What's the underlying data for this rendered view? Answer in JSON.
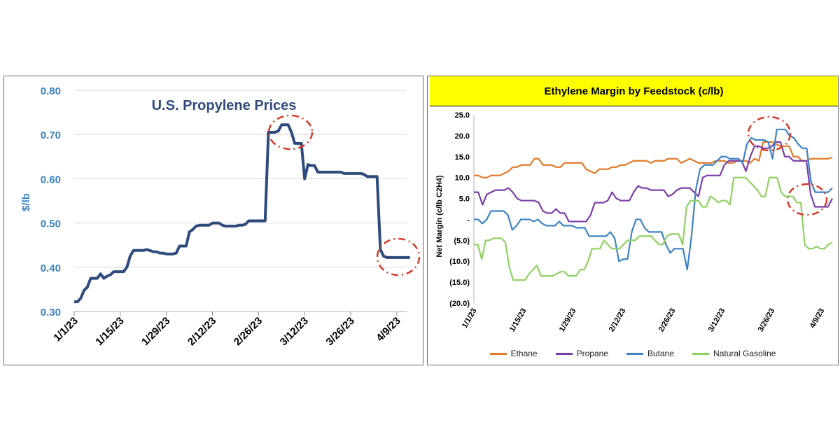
{
  "chart_data": [
    {
      "type": "line",
      "title": "U.S. Propylene Prices",
      "xlabel": "",
      "ylabel": "$/lb",
      "ylim": [
        0.3,
        0.8
      ],
      "yticks": [
        "0.30",
        "0.40",
        "0.50",
        "0.60",
        "0.70",
        "0.80"
      ],
      "xticks": [
        "1/1/23",
        "1/15/23",
        "1/29/23",
        "2/12/23",
        "2/26/23",
        "3/12/23",
        "3/26/23",
        "4/9/23"
      ],
      "grid": true,
      "x_start": "2023-01-01",
      "series": [
        {
          "name": "",
          "color": "#2f4b7c",
          "values": [
            0.322,
            0.322,
            0.33,
            0.348,
            0.355,
            0.375,
            0.375,
            0.375,
            0.385,
            0.375,
            0.38,
            0.383,
            0.39,
            0.39,
            0.39,
            0.39,
            0.4,
            0.425,
            0.438,
            0.438,
            0.438,
            0.438,
            0.44,
            0.438,
            0.435,
            0.435,
            0.432,
            0.432,
            0.43,
            0.43,
            0.43,
            0.432,
            0.448,
            0.448,
            0.448,
            0.48,
            0.485,
            0.493,
            0.495,
            0.495,
            0.495,
            0.495,
            0.5,
            0.5,
            0.5,
            0.495,
            0.493,
            0.493,
            0.493,
            0.493,
            0.495,
            0.495,
            0.497,
            0.505,
            0.505,
            0.505,
            0.505,
            0.505,
            0.505,
            0.705,
            0.705,
            0.705,
            0.708,
            0.722,
            0.722,
            0.722,
            0.705,
            0.68,
            0.68,
            0.68,
            0.6,
            0.632,
            0.63,
            0.63,
            0.615,
            0.615,
            0.615,
            0.615,
            0.615,
            0.615,
            0.615,
            0.615,
            0.612,
            0.612,
            0.612,
            0.612,
            0.612,
            0.612,
            0.61,
            0.605,
            0.605,
            0.605,
            0.605,
            0.44,
            0.425,
            0.422,
            0.422,
            0.422,
            0.422,
            0.422,
            0.422,
            0.422,
            0.422
          ]
        }
      ]
    },
    {
      "type": "line",
      "title": "Ethylene Margin by Feedstock (c/lb)",
      "xlabel": "",
      "ylabel": "Net Margin (c/lb C2H4)",
      "ylim": [
        -20,
        25
      ],
      "yticks": [
        "(20.0)",
        "(15.0)",
        "(10.0)",
        "(5.0)",
        "-",
        "5.0",
        "10.0",
        "15.0",
        "20.0",
        "25.0"
      ],
      "xticks": [
        "1/1/23",
        "1/15/23",
        "1/29/23",
        "2/12/23",
        "2/26/23",
        "3/12/23",
        "3/26/23",
        "4/9/23"
      ],
      "legend": "bottom",
      "x_start": "2023-01-01",
      "series": [
        {
          "name": "Ethane",
          "color": "#e07b2a",
          "values": [
            10.5,
            10.5,
            10,
            10,
            10.5,
            10.5,
            10.5,
            11,
            11.5,
            12.5,
            12.5,
            13,
            13,
            13,
            14.5,
            14.5,
            13,
            13,
            13,
            12.5,
            12.5,
            13.5,
            13.5,
            13.5,
            13.5,
            13.5,
            12,
            11.5,
            11,
            12,
            12,
            12,
            12.5,
            12.5,
            13,
            13,
            13.5,
            14,
            14,
            14,
            14,
            13.5,
            14,
            14,
            14,
            14.5,
            14.5,
            14.5,
            13.5,
            14,
            14.5,
            14,
            13.5,
            13.5,
            13.5,
            13.5,
            14,
            14,
            14,
            13.5,
            13.5,
            14,
            14,
            14,
            13.5,
            14.5,
            14,
            18.5,
            18.5,
            18.5,
            18,
            17.5,
            17.5,
            17.5,
            15,
            15,
            14,
            14,
            14.5,
            14.5,
            14.5,
            14.5,
            14.5,
            14.8
          ]
        },
        {
          "name": "Propane",
          "color": "#7a3ea8",
          "values": [
            6.5,
            6.5,
            3.5,
            6,
            6.5,
            7,
            7,
            7,
            7.5,
            6.5,
            5,
            4.5,
            4.5,
            4.5,
            4.5,
            4,
            2,
            1.5,
            1.5,
            2.5,
            1.5,
            1.5,
            -0.5,
            -0.5,
            -0.5,
            -0.5,
            -0.5,
            1,
            4,
            4,
            4,
            4.5,
            6.5,
            5,
            4.5,
            4.5,
            4.5,
            6.5,
            8,
            7.5,
            7.5,
            7,
            7,
            7,
            7,
            5.5,
            6,
            7,
            7.5,
            7.5,
            7.5,
            6.5,
            5.5,
            10,
            10.5,
            10.5,
            10.5,
            10.5,
            13,
            14,
            14,
            14,
            14,
            11.5,
            15,
            17.5,
            17.5,
            17,
            17,
            17.5,
            18.5,
            18.5,
            15,
            15,
            14,
            14,
            14,
            14,
            6,
            3,
            3,
            3,
            3,
            5
          ]
        },
        {
          "name": "Butane",
          "color": "#3b83c4",
          "values": [
            0,
            0,
            -1,
            0,
            2,
            2,
            2,
            2,
            1,
            -2.5,
            -1.5,
            0,
            0,
            0,
            -0.5,
            0,
            -1,
            -1.5,
            -1.5,
            -1.5,
            -0.5,
            -1.5,
            -1.5,
            -1.5,
            -2,
            -2,
            -2,
            -4,
            -4,
            -4,
            -4,
            -4,
            -3,
            -4.5,
            -10,
            -9.5,
            -9.5,
            -3,
            0,
            0,
            -2,
            -3,
            -3,
            -3,
            -3,
            -6,
            -8,
            -7,
            -7,
            -7,
            -12,
            -4,
            7,
            12,
            13,
            13,
            13,
            14,
            15,
            15,
            14.5,
            14.5,
            14.5,
            13.5,
            18,
            19.5,
            19,
            19,
            19,
            18.5,
            14.5,
            21.5,
            21.5,
            21.5,
            20,
            19.5,
            18,
            17,
            17,
            9,
            6.5,
            6.5,
            6.5,
            6.5,
            7.5
          ]
        },
        {
          "name": "Natural Gasoline",
          "color": "#8fd160",
          "values": [
            -6,
            -6,
            -9.5,
            -5,
            -5,
            -4.5,
            -4.5,
            -4.5,
            -5.5,
            -11.5,
            -14.5,
            -14.5,
            -14.5,
            -14.5,
            -13,
            -12,
            -11,
            -13.5,
            -13.5,
            -13.5,
            -13.5,
            -13,
            -12.5,
            -12.5,
            -13.5,
            -13.5,
            -13.5,
            -12,
            -12,
            -10,
            -7,
            -7,
            -7,
            -5,
            -6,
            -7,
            -7,
            -7,
            -6,
            -5,
            -5,
            -5,
            -4,
            -4,
            -4,
            -4,
            -5,
            -6,
            -6,
            -4,
            -3.5,
            -3.5,
            -3.5,
            -6,
            3,
            4.5,
            4.5,
            4.5,
            3,
            3,
            5.5,
            5,
            4,
            4.5,
            4.5,
            3.5,
            10,
            10,
            10,
            10,
            9,
            8,
            7,
            5.5,
            5.5,
            10,
            10,
            10,
            6.5,
            5.5,
            5.5,
            5.5,
            4,
            4,
            -6,
            -7,
            -7,
            -6.5,
            -7,
            -7,
            -6,
            -5.5
          ]
        }
      ]
    }
  ]
}
